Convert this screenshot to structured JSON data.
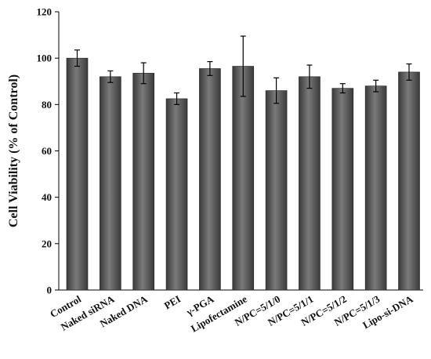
{
  "chart_data": {
    "type": "bar",
    "title": "",
    "xlabel": "",
    "ylabel": "Cell Viability (% of Control)",
    "ylim": [
      0,
      120
    ],
    "yticks": [
      0,
      20,
      40,
      60,
      80,
      100,
      120
    ],
    "grid": false,
    "categories": [
      "Control",
      "Naked siRNA",
      "Naked DNA",
      "PEI",
      "γ-PGA",
      "Lipofectamine",
      "N/PC=5/1/0",
      "N/PC=5/1/1",
      "N/PC=5/1/2",
      "N/PC=5/1/3",
      "Lipo-si-DNA"
    ],
    "values": [
      100,
      92,
      93.5,
      82.5,
      95.5,
      96.5,
      86,
      92,
      87,
      88,
      94
    ],
    "errors": [
      3.5,
      2.5,
      4.5,
      2.5,
      3,
      13,
      5.5,
      5,
      2,
      2.5,
      3.5
    ],
    "bar_color": "#555555"
  }
}
